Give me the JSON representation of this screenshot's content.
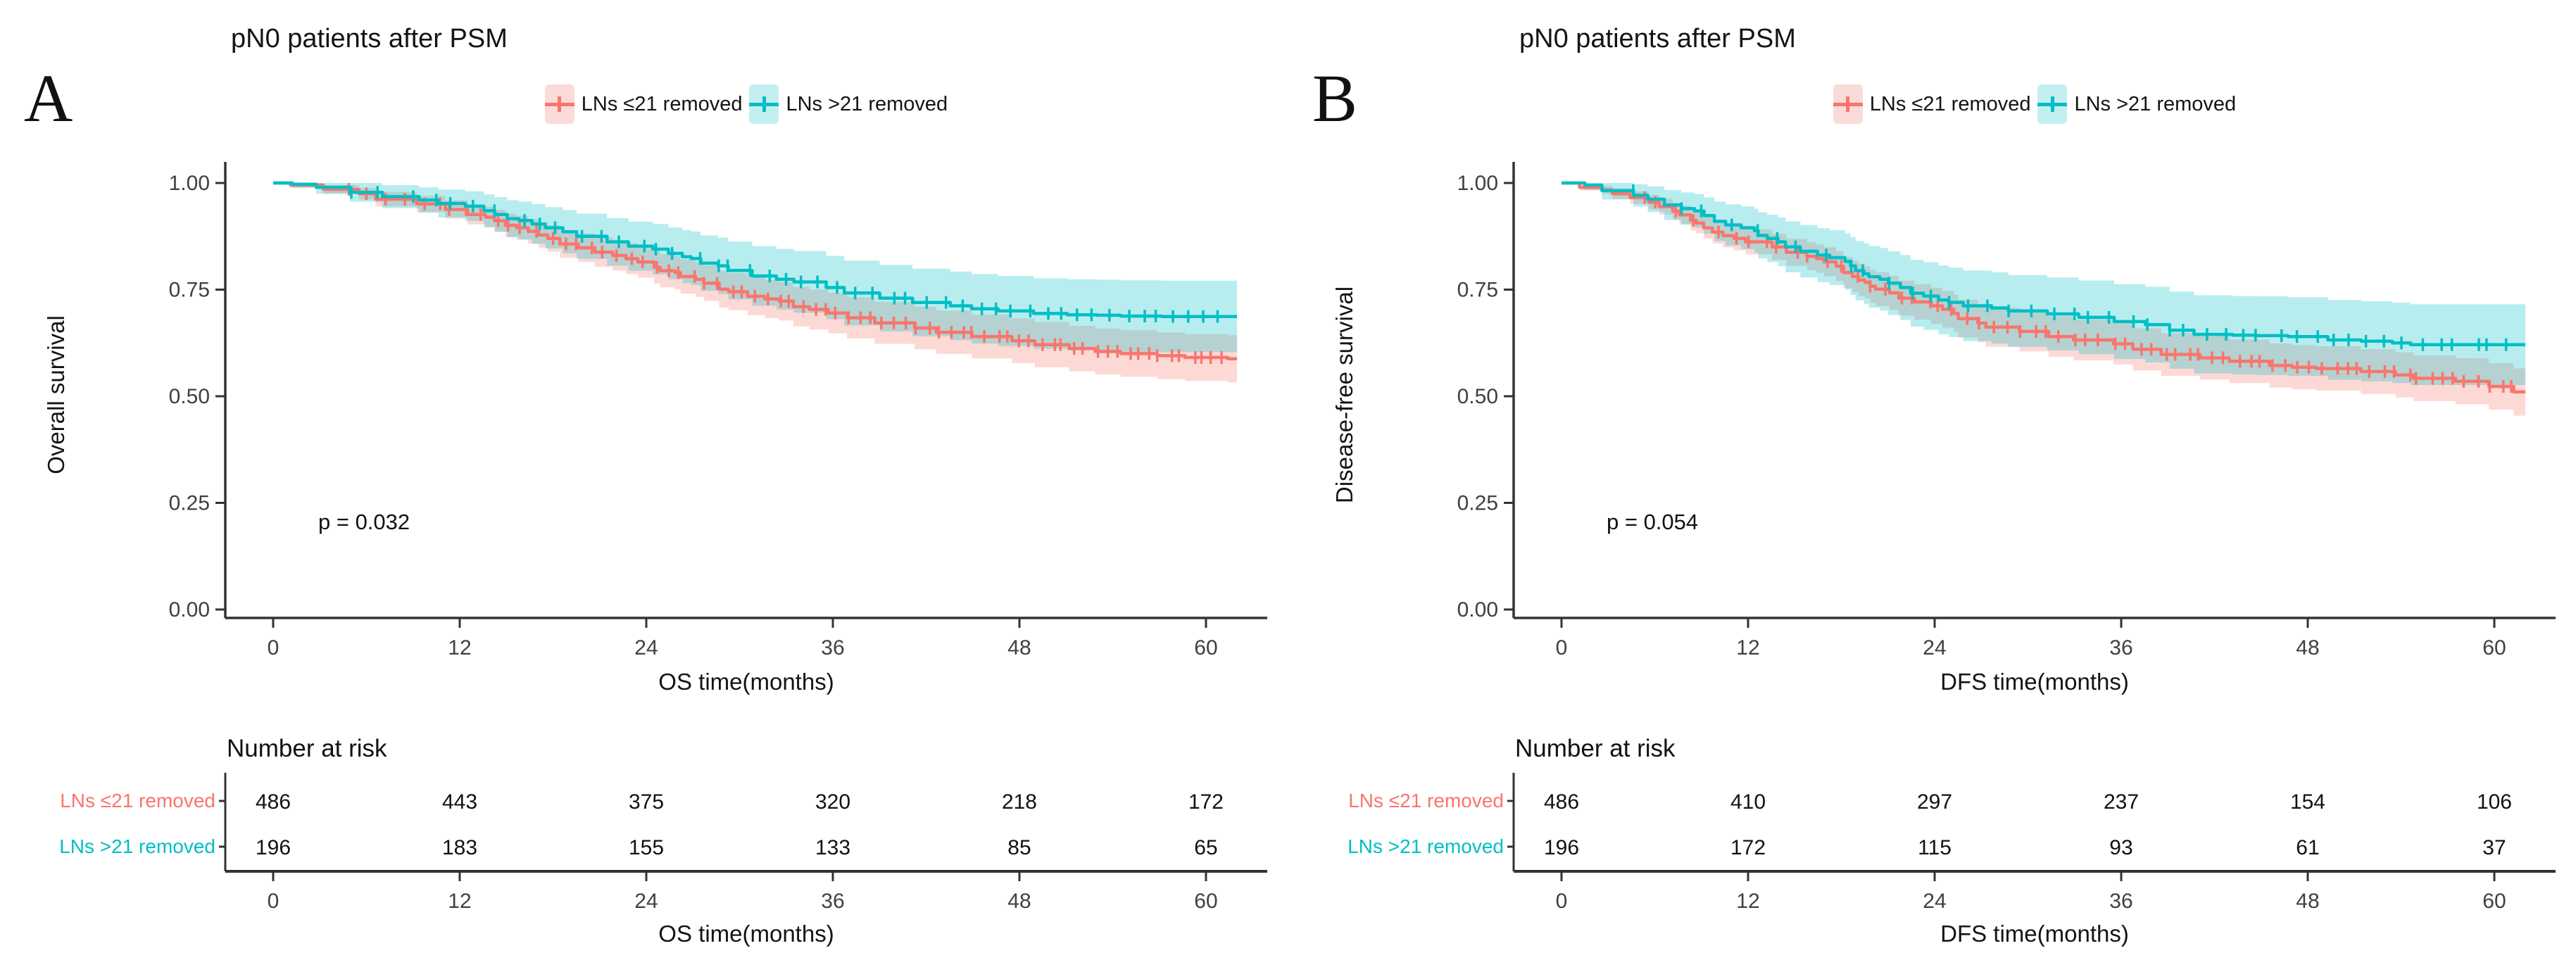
{
  "figure": {
    "background": "#ffffff",
    "colors": {
      "axis": "#333333",
      "tick_text": "#404040",
      "text": "#141414"
    }
  },
  "chart_data": [
    {
      "panel": "A",
      "type": "km_step",
      "title": "pN0 patients after PSM",
      "xlabel": "OS time(months)",
      "ylabel": "Overall survival",
      "p_value": "p = 0.032",
      "xlim": [
        0,
        64
      ],
      "ylim": [
        0,
        1
      ],
      "xticks": [
        0,
        12,
        24,
        36,
        48,
        60
      ],
      "yticks": [
        0.0,
        0.25,
        0.5,
        0.75,
        1.0
      ],
      "grid": false,
      "legend_position": "top-center",
      "series": [
        {
          "name": "LNs ≤21 removed",
          "color": "#F8766D",
          "key_fill": "#fbdbd8",
          "ci_c": 0.086,
          "censor_count": 72,
          "seed": 11,
          "points": [
            [
              0,
              1
            ],
            [
              2,
              0.995
            ],
            [
              4,
              0.985
            ],
            [
              6,
              0.975
            ],
            [
              8,
              0.962
            ],
            [
              10,
              0.951
            ],
            [
              12,
              0.938
            ],
            [
              14,
              0.92
            ],
            [
              16,
              0.895
            ],
            [
              18,
              0.87
            ],
            [
              20,
              0.848
            ],
            [
              22,
              0.83
            ],
            [
              24,
              0.815
            ],
            [
              26,
              0.79
            ],
            [
              28,
              0.765
            ],
            [
              30,
              0.745
            ],
            [
              32,
              0.728
            ],
            [
              34,
              0.71
            ],
            [
              36,
              0.695
            ],
            [
              38,
              0.684
            ],
            [
              40,
              0.672
            ],
            [
              42,
              0.66
            ],
            [
              44,
              0.65
            ],
            [
              46,
              0.64
            ],
            [
              48,
              0.63
            ],
            [
              50,
              0.621
            ],
            [
              52,
              0.612
            ],
            [
              54,
              0.605
            ],
            [
              56,
              0.6
            ],
            [
              58,
              0.595
            ],
            [
              60,
              0.591
            ],
            [
              62,
              0.588
            ]
          ]
        },
        {
          "name": "LNs >21 removed",
          "color": "#00BFC4",
          "key_fill": "#c4eff1",
          "ci_c": 0.15,
          "censor_count": 48,
          "seed": 22,
          "points": [
            [
              0,
              1
            ],
            [
              2,
              0.997
            ],
            [
              4,
              0.99
            ],
            [
              6,
              0.978
            ],
            [
              8,
              0.968
            ],
            [
              10,
              0.96
            ],
            [
              12,
              0.952
            ],
            [
              14,
              0.935
            ],
            [
              16,
              0.912
            ],
            [
              18,
              0.895
            ],
            [
              20,
              0.875
            ],
            [
              22,
              0.862
            ],
            [
              24,
              0.852
            ],
            [
              26,
              0.835
            ],
            [
              28,
              0.812
            ],
            [
              30,
              0.795
            ],
            [
              32,
              0.782
            ],
            [
              34,
              0.768
            ],
            [
              36,
              0.755
            ],
            [
              38,
              0.742
            ],
            [
              40,
              0.73
            ],
            [
              42,
              0.72
            ],
            [
              44,
              0.712
            ],
            [
              46,
              0.705
            ],
            [
              48,
              0.7
            ],
            [
              50,
              0.694
            ],
            [
              52,
              0.691
            ],
            [
              54,
              0.69
            ],
            [
              56,
              0.688
            ],
            [
              58,
              0.687
            ],
            [
              60,
              0.687
            ],
            [
              62,
              0.687
            ]
          ]
        }
      ],
      "risk_table": {
        "title": "Number at risk",
        "times": [
          0,
          12,
          24,
          36,
          48,
          60
        ],
        "rows": [
          {
            "name": "LNs ≤21 removed",
            "color": "#F8766D",
            "values": [
              486,
              443,
              375,
              320,
              218,
              172
            ]
          },
          {
            "name": "LNs >21 removed",
            "color": "#00BFC4",
            "values": [
              196,
              183,
              155,
              133,
              85,
              65
            ]
          }
        ]
      }
    },
    {
      "panel": "B",
      "type": "km_step",
      "title": "pN0 patients after PSM",
      "xlabel": "DFS time(months)",
      "ylabel": "Disease-free survival",
      "p_value": "p = 0.054",
      "xlim": [
        0,
        64
      ],
      "ylim": [
        0,
        1
      ],
      "xticks": [
        0,
        12,
        24,
        36,
        48,
        60
      ],
      "yticks": [
        0.0,
        0.25,
        0.5,
        0.75,
        1.0
      ],
      "grid": false,
      "legend_position": "top-center",
      "series": [
        {
          "name": "LNs ≤21 removed",
          "color": "#F8766D",
          "key_fill": "#fbdbd8",
          "ci_c": 0.079,
          "censor_count": 66,
          "seed": 33,
          "points": [
            [
              0,
              1
            ],
            [
              2,
              0.99
            ],
            [
              4,
              0.975
            ],
            [
              6,
              0.955
            ],
            [
              8,
              0.925
            ],
            [
              10,
              0.885
            ],
            [
              12,
              0.862
            ],
            [
              14,
              0.85
            ],
            [
              16,
              0.828
            ],
            [
              18,
              0.805
            ],
            [
              20,
              0.758
            ],
            [
              22,
              0.73
            ],
            [
              24,
              0.712
            ],
            [
              26,
              0.682
            ],
            [
              28,
              0.662
            ],
            [
              30,
              0.652
            ],
            [
              32,
              0.64
            ],
            [
              34,
              0.632
            ],
            [
              36,
              0.623
            ],
            [
              38,
              0.61
            ],
            [
              40,
              0.598
            ],
            [
              42,
              0.59
            ],
            [
              44,
              0.582
            ],
            [
              46,
              0.572
            ],
            [
              48,
              0.568
            ],
            [
              50,
              0.565
            ],
            [
              52,
              0.558
            ],
            [
              54,
              0.55
            ],
            [
              56,
              0.542
            ],
            [
              58,
              0.535
            ],
            [
              60,
              0.523
            ],
            [
              62,
              0.51
            ]
          ]
        },
        {
          "name": "LNs >21 removed",
          "color": "#00BFC4",
          "key_fill": "#c4eff1",
          "ci_c": 0.154,
          "censor_count": 44,
          "seed": 44,
          "points": [
            [
              0,
              1
            ],
            [
              2,
              0.995
            ],
            [
              4,
              0.982
            ],
            [
              6,
              0.962
            ],
            [
              8,
              0.94
            ],
            [
              10,
              0.91
            ],
            [
              12,
              0.895
            ],
            [
              14,
              0.862
            ],
            [
              16,
              0.84
            ],
            [
              18,
              0.825
            ],
            [
              20,
              0.78
            ],
            [
              22,
              0.755
            ],
            [
              24,
              0.735
            ],
            [
              26,
              0.712
            ],
            [
              28,
              0.707
            ],
            [
              30,
              0.7
            ],
            [
              32,
              0.693
            ],
            [
              34,
              0.685
            ],
            [
              36,
              0.675
            ],
            [
              38,
              0.668
            ],
            [
              40,
              0.655
            ],
            [
              42,
              0.645
            ],
            [
              44,
              0.643
            ],
            [
              46,
              0.642
            ],
            [
              48,
              0.64
            ],
            [
              50,
              0.632
            ],
            [
              52,
              0.629
            ],
            [
              54,
              0.625
            ],
            [
              56,
              0.621
            ],
            [
              58,
              0.621
            ],
            [
              60,
              0.621
            ],
            [
              62,
              0.621
            ]
          ]
        }
      ],
      "risk_table": {
        "title": "Number at risk",
        "times": [
          0,
          12,
          24,
          36,
          48,
          60
        ],
        "rows": [
          {
            "name": "LNs ≤21 removed",
            "color": "#F8766D",
            "values": [
              486,
              410,
              297,
              237,
              154,
              106
            ]
          },
          {
            "name": "LNs >21 removed",
            "color": "#00BFC4",
            "values": [
              196,
              172,
              115,
              93,
              61,
              37
            ]
          }
        ]
      }
    }
  ]
}
